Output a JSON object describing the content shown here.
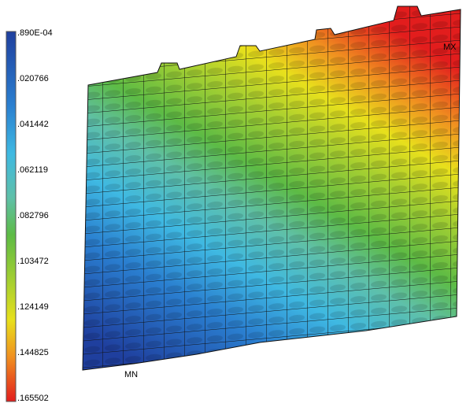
{
  "legend": {
    "labels": [
      ".890E-04",
      ".020766",
      ".041442",
      ".062119",
      ".082796",
      ".103472",
      ".124149",
      ".144825",
      ".165502"
    ]
  },
  "markers": {
    "min": "MN",
    "max": "MX"
  }
}
